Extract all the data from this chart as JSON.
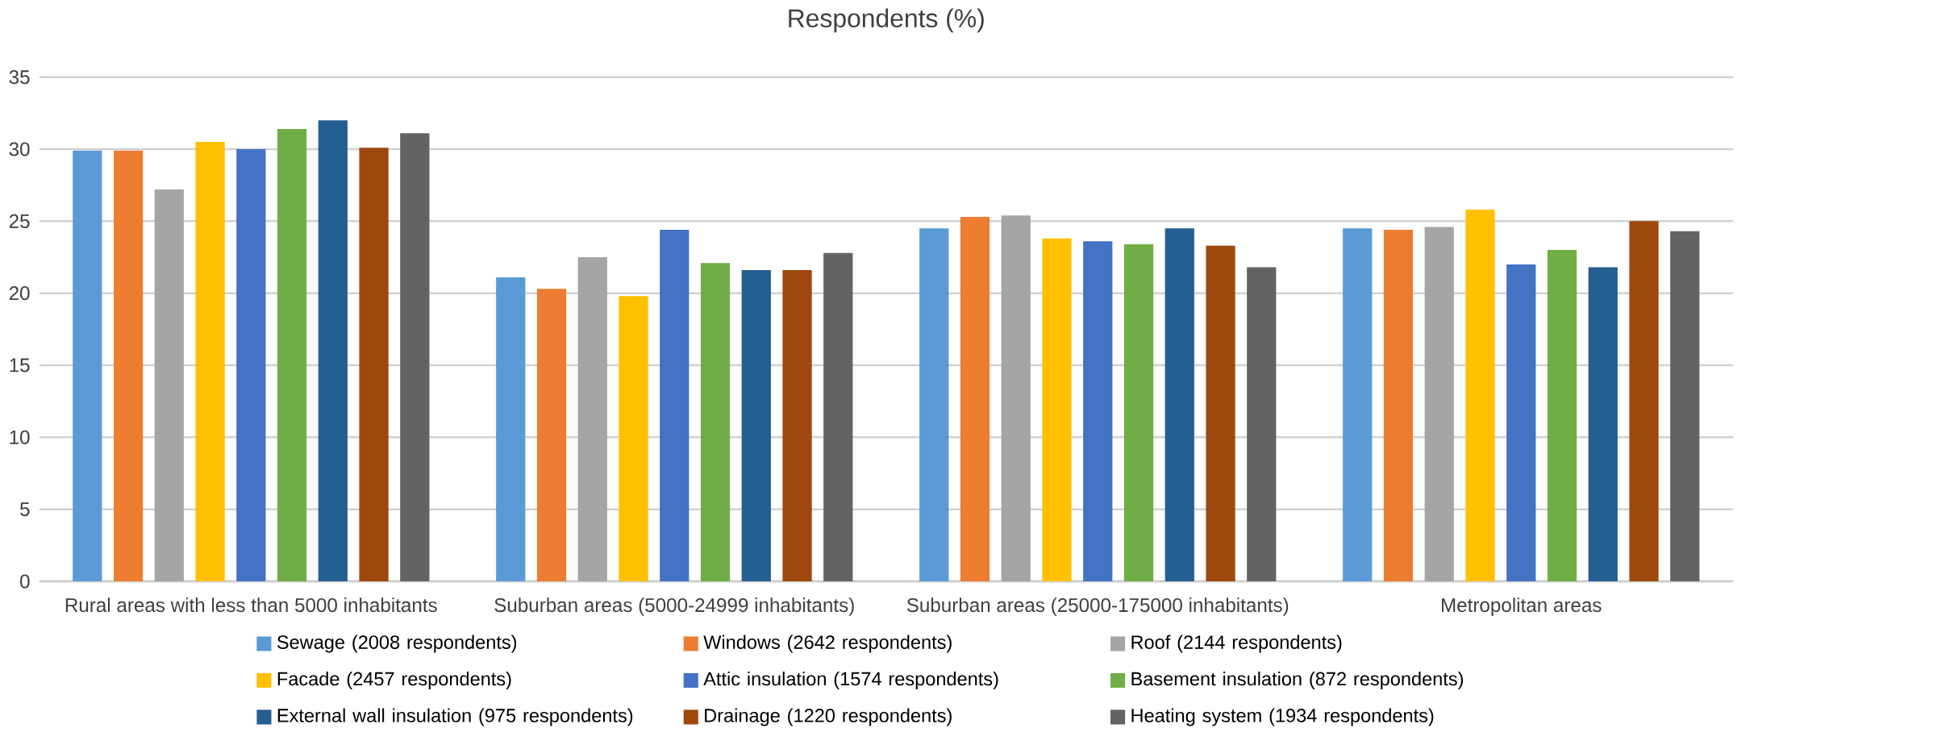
{
  "chart_data": {
    "type": "bar",
    "title": "Respondents (%)",
    "categories": [
      "Rural areas with less than 5000 inhabitants",
      "Suburban areas (5000-24999 inhabitants)",
      "Suburban areas (25000-175000 inhabitants)",
      "Metropolitan areas"
    ],
    "series": [
      {
        "name": "Sewage (2008 respondents)",
        "color": "#5b9bd5",
        "values": [
          29.9,
          21.1,
          24.5,
          24.5
        ]
      },
      {
        "name": "Windows (2642 respondents)",
        "color": "#ed7d31",
        "values": [
          29.9,
          20.3,
          25.3,
          24.4
        ]
      },
      {
        "name": "Roof (2144 respondents)",
        "color": "#a5a5a5",
        "values": [
          27.2,
          22.5,
          25.4,
          24.6
        ]
      },
      {
        "name": "Facade (2457 respondents)",
        "color": "#ffc000",
        "values": [
          30.5,
          19.8,
          23.8,
          25.8
        ]
      },
      {
        "name": "Attic insulation (1574 respondents)",
        "color": "#4472c4",
        "values": [
          30.0,
          24.4,
          23.6,
          22.0
        ]
      },
      {
        "name": "Basement insulation (872 respondents)",
        "color": "#70ad47",
        "values": [
          31.4,
          22.1,
          23.4,
          23.0
        ]
      },
      {
        "name": "External wall insulation (975 respondents)",
        "color": "#255e91",
        "values": [
          32.0,
          21.6,
          24.5,
          21.8
        ]
      },
      {
        "name": "Drainage (1220 respondents)",
        "color": "#9e480e",
        "values": [
          30.1,
          21.6,
          23.3,
          25.0
        ]
      },
      {
        "name": "Heating system (1934 respondents)",
        "color": "#636363",
        "values": [
          31.1,
          22.8,
          21.8,
          24.3
        ]
      }
    ],
    "ylim": [
      0,
      35
    ],
    "yticks": [
      0,
      5,
      10,
      15,
      20,
      25,
      30,
      35
    ],
    "grid": "y",
    "legend": "bottom"
  }
}
